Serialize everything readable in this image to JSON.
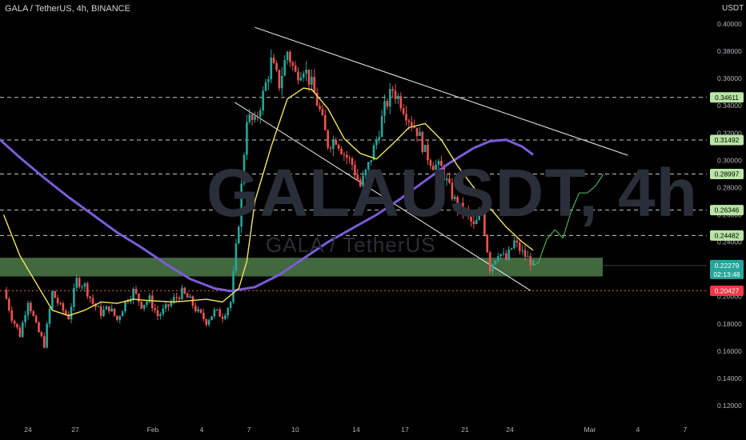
{
  "header": {
    "title": "GALA / TetherUS, 4h, BINANCE",
    "currency": "USDT"
  },
  "watermark": {
    "symbol": "GALAUSDT, 4h",
    "pair": "GALA / TetherUS"
  },
  "colors": {
    "background": "#000000",
    "up": "#26a69a",
    "down": "#ef5350",
    "ma_fast": "#f2e65c",
    "ma_slow": "#7b5cd6",
    "support_zone": "#4c7a4a",
    "forecast": "#4caf50",
    "level_label": "#b9e6a6"
  },
  "chart_data": {
    "type": "candlestick",
    "symbol": "GALAUSDT",
    "timeframe": "4h",
    "exchange": "BINANCE",
    "y_axis": {
      "ticks": [
        "0.40000",
        "0.38000",
        "0.36000",
        "0.34000",
        "0.32000",
        "0.30000",
        "0.28000",
        "0.26000",
        "0.24000",
        "0.22000",
        "0.20000",
        "0.18000",
        "0.16000",
        "0.14000",
        "0.12000"
      ],
      "range": [
        0.11,
        0.41
      ]
    },
    "x_axis": {
      "ticks": [
        "24",
        "27",
        "Feb",
        "4",
        "7",
        "10",
        "14",
        "17",
        "21",
        "24",
        "Mar",
        "4",
        "7"
      ]
    },
    "current_price": {
      "value": 0.22279,
      "label": "0.22279",
      "countdown": "02:13:48"
    },
    "levels": [
      {
        "value": 0.34611,
        "label": "0.34611",
        "style": "dashed"
      },
      {
        "value": 0.31492,
        "label": "0.31492",
        "style": "dashed"
      },
      {
        "value": 0.28997,
        "label": "0.28997",
        "style": "dashed"
      },
      {
        "value": 0.26346,
        "label": "0.26346",
        "style": "dashed"
      },
      {
        "value": 0.24482,
        "label": "0.24482",
        "style": "dashed"
      },
      {
        "value": 0.20427,
        "label": "0.20427",
        "style": "dotted-red"
      }
    ],
    "support_zone": {
      "low": 0.2148,
      "high": 0.2285
    },
    "price_path": [
      [
        "Jan 22 12:00",
        0.205
      ],
      [
        "Jan 23 00:00",
        0.185
      ],
      [
        "Jan 23 12:00",
        0.172
      ],
      [
        "Jan 24 00:00",
        0.198
      ],
      [
        "Jan 24 12:00",
        0.178
      ],
      [
        "Jan 25 00:00",
        0.165
      ],
      [
        "Jan 25 12:00",
        0.203
      ],
      [
        "Jan 26 00:00",
        0.192
      ],
      [
        "Jan 26 12:00",
        0.185
      ],
      [
        "Jan 27 00:00",
        0.212
      ],
      [
        "Jan 27 12:00",
        0.208
      ],
      [
        "Jan 28 00:00",
        0.195
      ],
      [
        "Jan 28 12:00",
        0.188
      ],
      [
        "Jan 29 00:00",
        0.192
      ],
      [
        "Jan 29 12:00",
        0.183
      ],
      [
        "Jan 30 00:00",
        0.196
      ],
      [
        "Jan 30 12:00",
        0.204
      ],
      [
        "Jan 31 00:00",
        0.194
      ],
      [
        "Jan 31 12:00",
        0.198
      ],
      [
        "Feb 1 00:00",
        0.186
      ],
      [
        "Feb 1 12:00",
        0.191
      ],
      [
        "Feb 2 00:00",
        0.198
      ],
      [
        "Feb 2 12:00",
        0.203
      ],
      [
        "Feb 3 00:00",
        0.197
      ],
      [
        "Feb 3 12:00",
        0.188
      ],
      [
        "Feb 4 00:00",
        0.182
      ],
      [
        "Feb 4 12:00",
        0.189
      ],
      [
        "Feb 5 00:00",
        0.186
      ],
      [
        "Feb 5 12:00",
        0.196
      ],
      [
        "Feb 6 00:00",
        0.255
      ],
      [
        "Feb 6 12:00",
        0.332
      ],
      [
        "Feb 7 00:00",
        0.327
      ],
      [
        "Feb 7 12:00",
        0.348
      ],
      [
        "Feb 8 00:00",
        0.372
      ],
      [
        "Feb 8 12:00",
        0.356
      ],
      [
        "Feb 9 00:00",
        0.38
      ],
      [
        "Feb 9 12:00",
        0.363
      ],
      [
        "Feb 10 00:00",
        0.369
      ],
      [
        "Feb 10 12:00",
        0.355
      ],
      [
        "Feb 11 00:00",
        0.336
      ],
      [
        "Feb 11 12:00",
        0.312
      ],
      [
        "Feb 12 00:00",
        0.316
      ],
      [
        "Feb 12 12:00",
        0.305
      ],
      [
        "Feb 13 00:00",
        0.297
      ],
      [
        "Feb 13 12:00",
        0.281
      ],
      [
        "Feb 14 00:00",
        0.296
      ],
      [
        "Feb 14 12:00",
        0.315
      ],
      [
        "Feb 15 00:00",
        0.338
      ],
      [
        "Feb 15 12:00",
        0.352
      ],
      [
        "Feb 16 00:00",
        0.343
      ],
      [
        "Feb 16 12:00",
        0.331
      ],
      [
        "Feb 17 00:00",
        0.322
      ],
      [
        "Feb 17 12:00",
        0.306
      ],
      [
        "Feb 18 00:00",
        0.297
      ],
      [
        "Feb 18 12:00",
        0.294
      ],
      [
        "Feb 19 00:00",
        0.279
      ],
      [
        "Feb 19 12:00",
        0.266
      ],
      [
        "Feb 20 00:00",
        0.262
      ],
      [
        "Feb 20 12:00",
        0.251
      ],
      [
        "Feb 21 00:00",
        0.262
      ],
      [
        "Feb 21 12:00",
        0.221
      ],
      [
        "Feb 22 00:00",
        0.233
      ],
      [
        "Feb 22 12:00",
        0.227
      ],
      [
        "Feb 23 00:00",
        0.24
      ],
      [
        "Feb 23 12:00",
        0.232
      ],
      [
        "Feb 24 00:00",
        0.226
      ],
      [
        "Feb 24 04:00",
        0.2228
      ]
    ],
    "ma_fast_path": [
      [
        "Jan 22 12:00",
        0.26
      ],
      [
        "Jan 23 12:00",
        0.23
      ],
      [
        "Jan 24 12:00",
        0.21
      ],
      [
        "Jan 25 12:00",
        0.19
      ],
      [
        "Jan 26 12:00",
        0.186
      ],
      [
        "Jan 27 12:00",
        0.19
      ],
      [
        "Jan 28 12:00",
        0.196
      ],
      [
        "Jan 29 12:00",
        0.195
      ],
      [
        "Jan 30 12:00",
        0.198
      ],
      [
        "Jan 31 12:00",
        0.197
      ],
      [
        "Feb 2 00:00",
        0.196
      ],
      [
        "Feb 3 00:00",
        0.197
      ],
      [
        "Feb 4 00:00",
        0.198
      ],
      [
        "Feb 5 00:00",
        0.196
      ],
      [
        "Feb 6 00:00",
        0.206
      ],
      [
        "Feb 6 12:00",
        0.226
      ],
      [
        "Feb 7 00:00",
        0.27
      ],
      [
        "Feb 8 00:00",
        0.31
      ],
      [
        "Feb 9 00:00",
        0.345
      ],
      [
        "Feb 10 00:00",
        0.353
      ],
      [
        "Feb 10 12:00",
        0.352
      ],
      [
        "Feb 11 12:00",
        0.338
      ],
      [
        "Feb 12 12:00",
        0.316
      ],
      [
        "Feb 13 12:00",
        0.305
      ],
      [
        "Feb 14 12:00",
        0.301
      ],
      [
        "Feb 15 12:00",
        0.312
      ],
      [
        "Feb 16 12:00",
        0.324
      ],
      [
        "Feb 17 12:00",
        0.327
      ],
      [
        "Feb 18 12:00",
        0.315
      ],
      [
        "Feb 19 12:00",
        0.296
      ],
      [
        "Feb 20 12:00",
        0.28
      ],
      [
        "Feb 21 12:00",
        0.265
      ],
      [
        "Feb 22 12:00",
        0.251
      ],
      [
        "Feb 23 12:00",
        0.24
      ],
      [
        "Feb 24 04:00",
        0.234
      ]
    ],
    "ma_slow_path": [
      [
        "Jan 22 00:00",
        0.318
      ],
      [
        "Jan 23 12:00",
        0.302
      ],
      [
        "Jan 25 00:00",
        0.287
      ],
      [
        "Jan 26 12:00",
        0.273
      ],
      [
        "Jan 28 00:00",
        0.26
      ],
      [
        "Jan 29 12:00",
        0.247
      ],
      [
        "Jan 31 00:00",
        0.236
      ],
      [
        "Feb 1 12:00",
        0.224
      ],
      [
        "Feb 3 00:00",
        0.213
      ],
      [
        "Feb 4 12:00",
        0.206
      ],
      [
        "Feb 5 12:00",
        0.204
      ],
      [
        "Feb 7 00:00",
        0.207
      ],
      [
        "Feb 8 12:00",
        0.216
      ],
      [
        "Feb 10 00:00",
        0.228
      ],
      [
        "Feb 11 12:00",
        0.24
      ],
      [
        "Feb 13 00:00",
        0.25
      ],
      [
        "Feb 14 12:00",
        0.26
      ],
      [
        "Feb 16 00:00",
        0.272
      ],
      [
        "Feb 17 12:00",
        0.285
      ],
      [
        "Feb 19 00:00",
        0.298
      ],
      [
        "Feb 20 12:00",
        0.309
      ],
      [
        "Feb 21 12:00",
        0.314
      ],
      [
        "Feb 22 12:00",
        0.315
      ],
      [
        "Feb 23 12:00",
        0.31
      ],
      [
        "Feb 24 04:00",
        0.304
      ]
    ],
    "trendlines": [
      {
        "name": "upper-channel",
        "from": [
          "Feb 7 00:00",
          0.3975
        ],
        "to": [
          "Mar 2 00:00",
          0.3037
        ]
      },
      {
        "name": "lower-channel",
        "from": [
          "Feb 5 18:00",
          0.3426
        ],
        "to": [
          "Feb 24 00:00",
          0.2044
        ]
      }
    ],
    "forecast_path": [
      [
        "Feb 24 04:00",
        0.2228
      ],
      [
        "Feb 24 12:00",
        0.225
      ],
      [
        "Feb 25 00:00",
        0.242
      ],
      [
        "Feb 25 12:00",
        0.249
      ],
      [
        "Feb 26 00:00",
        0.243
      ],
      [
        "Feb 26 12:00",
        0.262
      ],
      [
        "Feb 27 00:00",
        0.276
      ],
      [
        "Feb 27 12:00",
        0.276
      ],
      [
        "Feb 28 00:00",
        0.281
      ],
      [
        "Feb 28 12:00",
        0.29
      ]
    ]
  }
}
